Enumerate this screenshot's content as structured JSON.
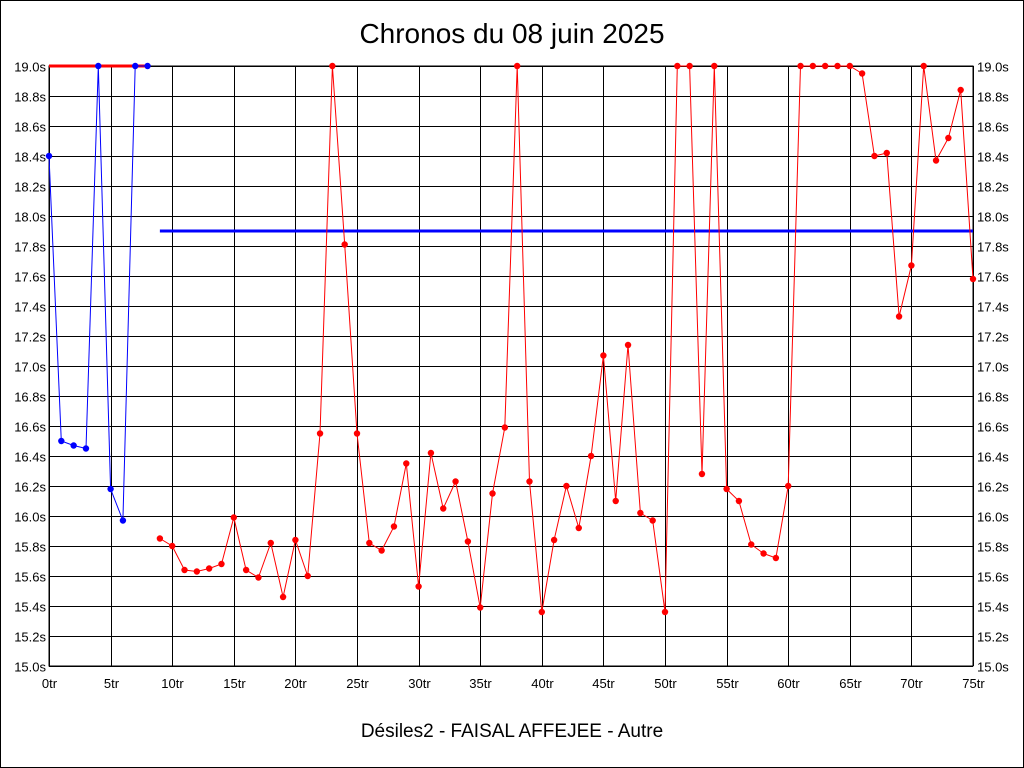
{
  "chart_data": {
    "type": "line",
    "title": "Chronos du 08 juin 2025",
    "subtitle": "Désiles2 - FAISAL AFFEJEE - Autre",
    "xlabel": "",
    "ylabel": "",
    "xlim": [
      0,
      75
    ],
    "ylim": [
      15.0,
      19.0
    ],
    "grid": true,
    "x_ticks": [
      0,
      5,
      10,
      15,
      20,
      25,
      30,
      35,
      40,
      45,
      50,
      55,
      60,
      65,
      70,
      75
    ],
    "x_tick_suffix": "tr",
    "y_ticks": [
      15.0,
      15.2,
      15.4,
      15.6,
      15.8,
      16.0,
      16.2,
      16.4,
      16.6,
      16.8,
      17.0,
      17.2,
      17.4,
      17.6,
      17.8,
      18.0,
      18.2,
      18.4,
      18.6,
      18.8,
      19.0
    ],
    "y_tick_suffix": "s",
    "reference_lines": [
      {
        "color": "#ff0000",
        "y": 19.0,
        "x": [
          0,
          8
        ]
      },
      {
        "color": "#0000ff",
        "y": 17.9,
        "x": [
          9,
          75
        ]
      }
    ],
    "series": [
      {
        "color": "#0000ff",
        "x": [
          0,
          1,
          2,
          3,
          4,
          5,
          6,
          7,
          8
        ],
        "y": [
          18.4,
          16.5,
          16.47,
          16.45,
          19.0,
          16.18,
          15.97,
          19.0,
          19.0
        ]
      },
      {
        "color": "#ff0000",
        "x": [
          9,
          10,
          11,
          12,
          13,
          14,
          15,
          16,
          17,
          18,
          19,
          20,
          21,
          22,
          23,
          24,
          25,
          26,
          27,
          28,
          29,
          30,
          31,
          32,
          33,
          34,
          35,
          36,
          37,
          38,
          39,
          40,
          41,
          42,
          43,
          44,
          45,
          46,
          47,
          48,
          49,
          50,
          51,
          52,
          53,
          54,
          55,
          56,
          57,
          58,
          59,
          60,
          61,
          62,
          63,
          64,
          65,
          66,
          67,
          68,
          69,
          70,
          71,
          72,
          73,
          74,
          75
        ],
        "y": [
          15.85,
          15.8,
          15.64,
          15.63,
          15.65,
          15.68,
          15.99,
          15.64,
          15.59,
          15.82,
          15.46,
          15.84,
          15.6,
          16.55,
          19.0,
          17.81,
          16.55,
          15.82,
          15.77,
          15.93,
          16.35,
          15.53,
          16.42,
          16.05,
          16.23,
          15.83,
          15.39,
          16.15,
          16.59,
          19.0,
          16.23,
          15.36,
          15.84,
          16.2,
          15.92,
          16.4,
          17.07,
          16.1,
          17.14,
          16.02,
          15.97,
          15.36,
          19.0,
          19.0,
          16.28,
          19.0,
          16.18,
          16.1,
          15.81,
          15.75,
          15.72,
          16.2,
          19.0,
          19.0,
          19.0,
          19.0,
          19.0,
          18.95,
          18.4,
          18.42,
          17.33,
          17.67,
          19.0,
          18.37,
          18.52,
          18.84,
          17.58
        ]
      }
    ]
  }
}
